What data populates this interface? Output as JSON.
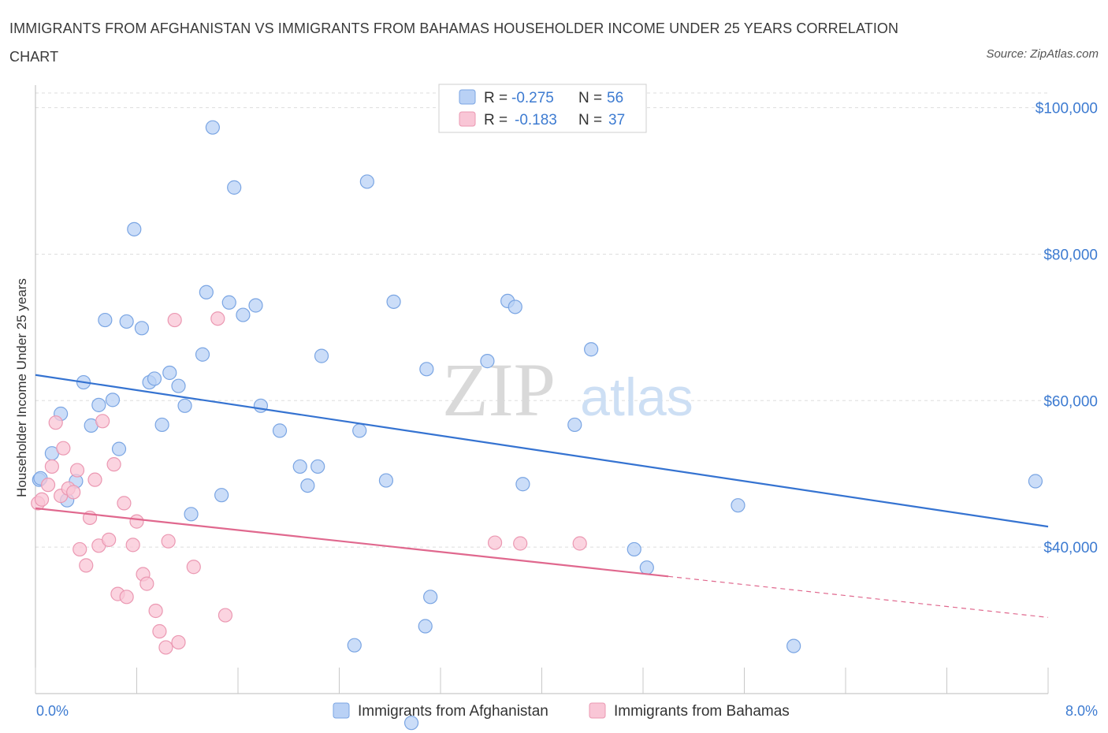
{
  "title": "IMMIGRANTS FROM AFGHANISTAN VS IMMIGRANTS FROM BAHAMAS HOUSEHOLDER INCOME UNDER 25 YEARS CORRELATION CHART",
  "source": "Source: ZipAtlas.com",
  "watermark": {
    "zip": "ZIP",
    "atlas": "atlas"
  },
  "colors": {
    "afghanistan": "#3573d1",
    "afghanistan_fill": "#b9d1f5",
    "bahamas": "#e0688e",
    "bahamas_fill": "#f9c6d6",
    "axis_label": "#3d7bd1",
    "grid": "#dddddd"
  },
  "chart_data": {
    "type": "scatter",
    "title": "IMMIGRANTS FROM AFGHANISTAN VS IMMIGRANTS FROM BAHAMAS HOUSEHOLDER INCOME UNDER 25 YEARS CORRELATION CHART",
    "xlabel": "",
    "ylabel": "Householder Income Under 25 years",
    "xlim": [
      0,
      8
    ],
    "ylim": [
      20000,
      102000
    ],
    "x_tick_labels": [
      "0.0%",
      "8.0%"
    ],
    "y_ticks": [
      40000,
      60000,
      80000,
      100000
    ],
    "y_tick_labels": [
      "$40,000",
      "$60,000",
      "$80,000",
      "$100,000"
    ],
    "grid": true,
    "legend_position": "top-center",
    "series": [
      {
        "name": "Immigrants from Afghanistan",
        "color": "#3573d1",
        "R": "-0.275",
        "N": "56",
        "trend": {
          "x": [
            0.0,
            8.0
          ],
          "y": [
            63500,
            42800
          ]
        },
        "points": [
          {
            "x": 0.03,
            "y": 49200
          },
          {
            "x": 0.04,
            "y": 49400
          },
          {
            "x": 0.13,
            "y": 52800
          },
          {
            "x": 0.2,
            "y": 58200
          },
          {
            "x": 0.25,
            "y": 46400
          },
          {
            "x": 0.32,
            "y": 49000
          },
          {
            "x": 0.38,
            "y": 62500
          },
          {
            "x": 0.44,
            "y": 56600
          },
          {
            "x": 0.5,
            "y": 59400
          },
          {
            "x": 0.55,
            "y": 71000
          },
          {
            "x": 0.61,
            "y": 60100
          },
          {
            "x": 0.66,
            "y": 53400
          },
          {
            "x": 0.72,
            "y": 70800
          },
          {
            "x": 0.78,
            "y": 83400
          },
          {
            "x": 0.84,
            "y": 69900
          },
          {
            "x": 0.9,
            "y": 62500
          },
          {
            "x": 0.94,
            "y": 63000
          },
          {
            "x": 1.0,
            "y": 56700
          },
          {
            "x": 1.06,
            "y": 63800
          },
          {
            "x": 1.13,
            "y": 62000
          },
          {
            "x": 1.18,
            "y": 59300
          },
          {
            "x": 1.23,
            "y": 44500
          },
          {
            "x": 1.32,
            "y": 66300
          },
          {
            "x": 1.35,
            "y": 74800
          },
          {
            "x": 1.4,
            "y": 97300
          },
          {
            "x": 1.47,
            "y": 47100
          },
          {
            "x": 1.53,
            "y": 73400
          },
          {
            "x": 1.57,
            "y": 89100
          },
          {
            "x": 1.64,
            "y": 71700
          },
          {
            "x": 1.74,
            "y": 73000
          },
          {
            "x": 1.78,
            "y": 59300
          },
          {
            "x": 1.93,
            "y": 55900
          },
          {
            "x": 2.09,
            "y": 51000
          },
          {
            "x": 2.15,
            "y": 48400
          },
          {
            "x": 2.23,
            "y": 51000
          },
          {
            "x": 2.26,
            "y": 66100
          },
          {
            "x": 2.52,
            "y": 26600
          },
          {
            "x": 2.56,
            "y": 55900
          },
          {
            "x": 2.62,
            "y": 89900
          },
          {
            "x": 2.77,
            "y": 49100
          },
          {
            "x": 2.83,
            "y": 73500
          },
          {
            "x": 2.97,
            "y": 16000
          },
          {
            "x": 3.08,
            "y": 29200
          },
          {
            "x": 3.09,
            "y": 64300
          },
          {
            "x": 3.12,
            "y": 33200
          },
          {
            "x": 3.57,
            "y": 65400
          },
          {
            "x": 3.73,
            "y": 73600
          },
          {
            "x": 3.79,
            "y": 72800
          },
          {
            "x": 3.85,
            "y": 48600
          },
          {
            "x": 4.26,
            "y": 56700
          },
          {
            "x": 4.39,
            "y": 67000
          },
          {
            "x": 4.73,
            "y": 39700
          },
          {
            "x": 4.83,
            "y": 37200
          },
          {
            "x": 5.55,
            "y": 45700
          },
          {
            "x": 5.99,
            "y": 26500
          },
          {
            "x": 7.9,
            "y": 49000
          }
        ]
      },
      {
        "name": "Immigrants from Bahamas",
        "color": "#e0688e",
        "R": "-0.183",
        "N": "37",
        "trend": {
          "x": [
            0.0,
            5.0
          ],
          "y": [
            45300,
            36000
          ]
        },
        "trend_dashed": {
          "x": [
            5.0,
            8.0
          ],
          "y": [
            36000,
            30400
          ]
        },
        "points": [
          {
            "x": 0.02,
            "y": 46000
          },
          {
            "x": 0.05,
            "y": 46500
          },
          {
            "x": 0.1,
            "y": 48500
          },
          {
            "x": 0.13,
            "y": 51000
          },
          {
            "x": 0.16,
            "y": 57000
          },
          {
            "x": 0.2,
            "y": 47000
          },
          {
            "x": 0.22,
            "y": 53500
          },
          {
            "x": 0.26,
            "y": 48000
          },
          {
            "x": 0.3,
            "y": 47500
          },
          {
            "x": 0.33,
            "y": 50500
          },
          {
            "x": 0.35,
            "y": 39700
          },
          {
            "x": 0.4,
            "y": 37500
          },
          {
            "x": 0.43,
            "y": 44000
          },
          {
            "x": 0.47,
            "y": 49200
          },
          {
            "x": 0.5,
            "y": 40200
          },
          {
            "x": 0.53,
            "y": 57200
          },
          {
            "x": 0.58,
            "y": 41000
          },
          {
            "x": 0.62,
            "y": 51300
          },
          {
            "x": 0.65,
            "y": 33600
          },
          {
            "x": 0.7,
            "y": 46000
          },
          {
            "x": 0.72,
            "y": 33200
          },
          {
            "x": 0.77,
            "y": 40300
          },
          {
            "x": 0.8,
            "y": 43500
          },
          {
            "x": 0.85,
            "y": 36300
          },
          {
            "x": 0.88,
            "y": 35000
          },
          {
            "x": 0.95,
            "y": 31300
          },
          {
            "x": 0.98,
            "y": 28500
          },
          {
            "x": 1.03,
            "y": 26300
          },
          {
            "x": 1.05,
            "y": 40800
          },
          {
            "x": 1.1,
            "y": 71000
          },
          {
            "x": 1.13,
            "y": 27000
          },
          {
            "x": 1.25,
            "y": 37300
          },
          {
            "x": 1.44,
            "y": 71200
          },
          {
            "x": 1.5,
            "y": 30700
          },
          {
            "x": 3.63,
            "y": 40600
          },
          {
            "x": 3.83,
            "y": 40500
          },
          {
            "x": 4.3,
            "y": 40500
          }
        ]
      }
    ]
  },
  "legend": {
    "rows": [
      {
        "r_label": "R =",
        "r_value": "-0.275",
        "n_label": "N =",
        "n_value": "56"
      },
      {
        "r_label": "R =",
        "r_value": "-0.183",
        "n_label": "N =",
        "n_value": "37"
      }
    ]
  },
  "bottom_legend": [
    "Immigrants from Afghanistan",
    "Immigrants from Bahamas"
  ]
}
